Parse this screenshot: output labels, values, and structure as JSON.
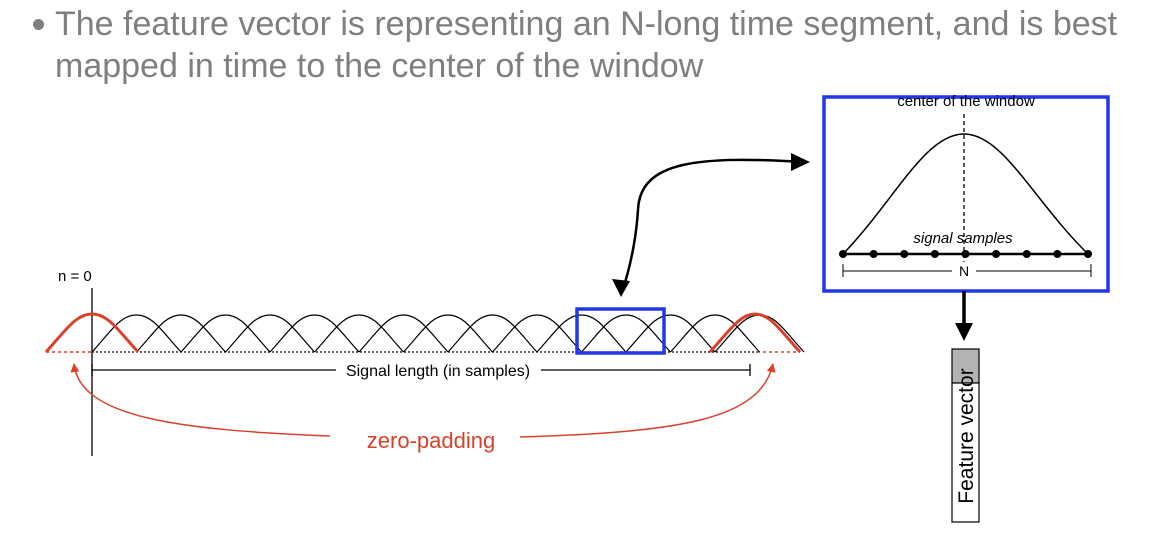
{
  "bullet": {
    "line1": "The feature vector is representing an N-long time segment, and is best",
    "line2": "mapped in time to the center of the window"
  },
  "diagram": {
    "n0_label": "n = 0",
    "signal_length_label": "Signal length (in samples)",
    "zero_padding_label": "zero-padding",
    "zoom_center_label": "center of the window",
    "zoom_samples_label": "signal samples",
    "zoom_n_label": "N",
    "feature_vector_label": "Feature vector",
    "colors": {
      "highlight_border": "#2238e8",
      "padding_red": "#d9412a",
      "feature_box_fill": "#b3b3b3",
      "text_gray": "#7f7f7f"
    }
  }
}
